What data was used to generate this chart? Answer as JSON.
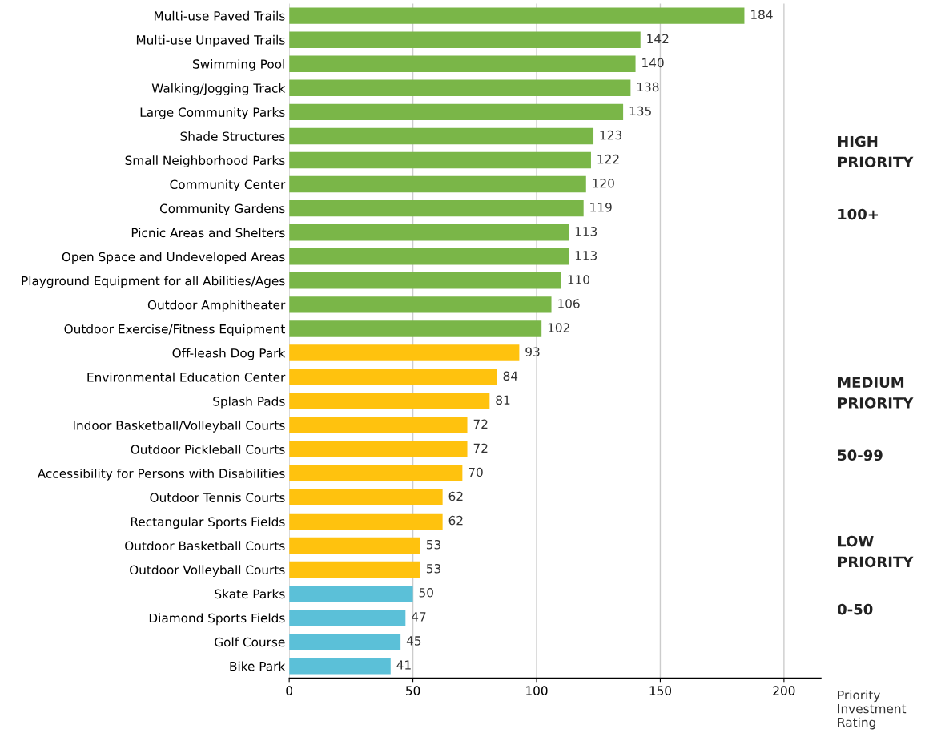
{
  "chart_data": {
    "type": "bar",
    "orientation": "horizontal",
    "categories": [
      "Multi-use Paved Trails",
      "Multi-use Unpaved Trails",
      "Swimming Pool",
      "Walking/Jogging Track",
      "Large Community Parks",
      "Shade Structures",
      "Small Neighborhood Parks",
      "Community Center",
      "Community Gardens",
      "Picnic Areas and Shelters",
      "Open Space and Undeveloped Areas",
      "Playground Equipment for all Abilities/Ages",
      "Outdoor Amphitheater",
      "Outdoor Exercise/Fitness Equipment",
      "Off-leash Dog Park",
      "Environmental Education Center",
      "Splash Pads",
      "Indoor Basketball/Volleyball Courts",
      "Outdoor Pickleball Courts",
      "Accessibility for Persons with Disabilities",
      "Outdoor Tennis Courts",
      "Rectangular Sports Fields",
      "Outdoor Basketball Courts",
      "Outdoor Volleyball Courts",
      "Skate Parks",
      "Diamond Sports Fields",
      "Golf Course",
      "Bike Park"
    ],
    "values": [
      184,
      142,
      140,
      138,
      135,
      123,
      122,
      120,
      119,
      113,
      113,
      110,
      106,
      102,
      93,
      84,
      81,
      72,
      72,
      70,
      62,
      62,
      53,
      53,
      50,
      47,
      45,
      41
    ],
    "colors": [
      "#7ab648",
      "#7ab648",
      "#7ab648",
      "#7ab648",
      "#7ab648",
      "#7ab648",
      "#7ab648",
      "#7ab648",
      "#7ab648",
      "#7ab648",
      "#7ab648",
      "#7ab648",
      "#7ab648",
      "#7ab648",
      "#ffc20e",
      "#ffc20e",
      "#ffc20e",
      "#ffc20e",
      "#ffc20e",
      "#ffc20e",
      "#ffc20e",
      "#ffc20e",
      "#ffc20e",
      "#ffc20e",
      "#5bc0d8",
      "#5bc0d8",
      "#5bc0d8",
      "#5bc0d8"
    ],
    "data_labels": true,
    "xlim": [
      0,
      215
    ],
    "xticks": [
      0,
      50,
      100,
      150,
      200
    ],
    "grid": "x",
    "xlabel": "Priority Investment Rating",
    "annotations": [
      "HIGH PRIORITY",
      "100+",
      "MEDIUM PRIORITY",
      "50-99",
      "LOW PRIORITY",
      "0-50"
    ]
  }
}
